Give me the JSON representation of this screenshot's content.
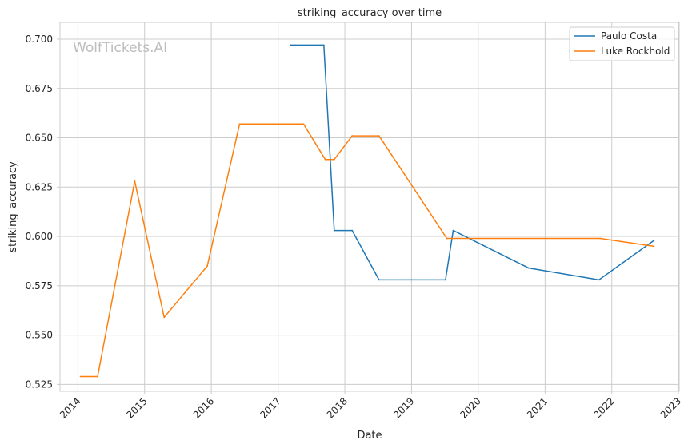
{
  "watermark": "WolfTickets.AI",
  "chart_data": {
    "type": "line",
    "title": "striking_accuracy over time",
    "xlabel": "Date",
    "ylabel": "striking_accuracy",
    "x_axis_type": "date",
    "xlim": [
      "2013-09-25",
      "2023-01-05"
    ],
    "ylim": [
      0.5215,
      0.7085
    ],
    "x_ticks": [
      "2014",
      "2015",
      "2016",
      "2017",
      "2018",
      "2019",
      "2020",
      "2021",
      "2022",
      "2023"
    ],
    "y_ticks": [
      "0.525",
      "0.550",
      "0.575",
      "0.600",
      "0.625",
      "0.650",
      "0.675",
      "0.700"
    ],
    "grid": true,
    "legend_position": "top-right",
    "series": [
      {
        "name": "Paulo Costa",
        "color": "#1f77b4",
        "points": [
          {
            "x": "2017-03-11",
            "y": 0.697
          },
          {
            "x": "2017-09-08",
            "y": 0.697
          },
          {
            "x": "2017-11-04",
            "y": 0.603
          },
          {
            "x": "2018-02-10",
            "y": 0.603
          },
          {
            "x": "2018-07-07",
            "y": 0.578
          },
          {
            "x": "2019-07-06",
            "y": 0.578
          },
          {
            "x": "2019-08-17",
            "y": 0.603
          },
          {
            "x": "2020-10-03",
            "y": 0.584
          },
          {
            "x": "2021-10-23",
            "y": 0.578
          },
          {
            "x": "2022-08-20",
            "y": 0.598
          }
        ]
      },
      {
        "name": "Luke Rockhold",
        "color": "#ff7f0e",
        "points": [
          {
            "x": "2014-01-15",
            "y": 0.529
          },
          {
            "x": "2014-04-19",
            "y": 0.529
          },
          {
            "x": "2014-11-08",
            "y": 0.628
          },
          {
            "x": "2015-04-18",
            "y": 0.559
          },
          {
            "x": "2015-12-10",
            "y": 0.585
          },
          {
            "x": "2016-06-04",
            "y": 0.657
          },
          {
            "x": "2017-05-20",
            "y": 0.657
          },
          {
            "x": "2017-09-16",
            "y": 0.639
          },
          {
            "x": "2017-11-04",
            "y": 0.639
          },
          {
            "x": "2018-02-10",
            "y": 0.651
          },
          {
            "x": "2018-07-07",
            "y": 0.651
          },
          {
            "x": "2019-07-13",
            "y": 0.599
          },
          {
            "x": "2021-10-30",
            "y": 0.599
          },
          {
            "x": "2022-08-20",
            "y": 0.595
          }
        ]
      }
    ]
  }
}
